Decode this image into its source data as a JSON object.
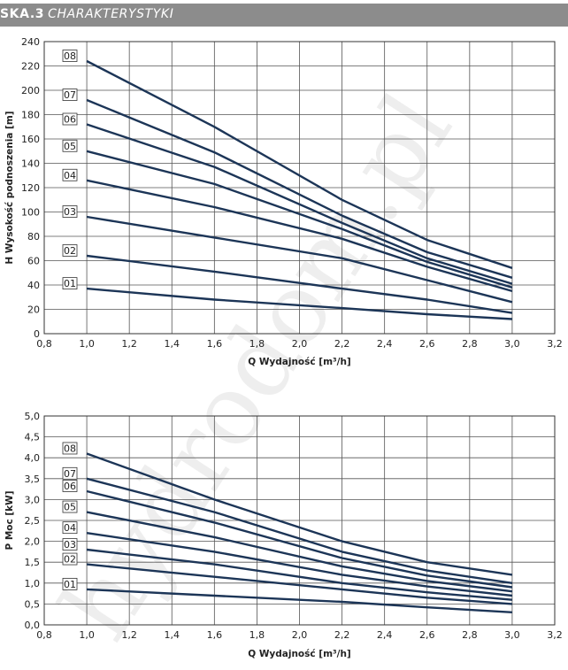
{
  "header": {
    "code": "SKA.3",
    "title": "CHARAKTERYSTYKI"
  },
  "watermark": "hydrodom.pl",
  "colors": {
    "line": "#1c3557",
    "grid": "#555555",
    "header_bg": "#8c8c8c"
  },
  "chart_data": [
    {
      "type": "line",
      "xlabel": "Q Wydajność [m³/h]",
      "ylabel": "H Wysokość podnoszenia [m]",
      "xlim": [
        0.8,
        3.2
      ],
      "ylim": [
        0,
        240
      ],
      "xticks": [
        "0,8",
        "1,0",
        "1,2",
        "1,4",
        "1,6",
        "1,8",
        "2,0",
        "2,2",
        "2,4",
        "2,6",
        "2,8",
        "3,0",
        "3,2"
      ],
      "yticks": [
        "0",
        "20",
        "40",
        "60",
        "80",
        "100",
        "120",
        "140",
        "160",
        "180",
        "200",
        "220",
        "240"
      ],
      "grid": true,
      "x": [
        1.0,
        1.6,
        2.2,
        2.6,
        3.0
      ],
      "series": [
        {
          "name": "08",
          "values": [
            224,
            170,
            110,
            77,
            54
          ]
        },
        {
          "name": "07",
          "values": [
            192,
            149,
            97,
            67,
            46
          ]
        },
        {
          "name": "06",
          "values": [
            172,
            137,
            91,
            62,
            41
          ]
        },
        {
          "name": "05",
          "values": [
            150,
            123,
            86,
            59,
            38
          ]
        },
        {
          "name": "04",
          "values": [
            126,
            104,
            78,
            55,
            35
          ]
        },
        {
          "name": "03",
          "values": [
            96,
            79,
            62,
            44,
            26
          ]
        },
        {
          "name": "02",
          "values": [
            64,
            51,
            37,
            28,
            17
          ]
        },
        {
          "name": "01",
          "values": [
            37,
            28,
            21,
            16,
            12
          ]
        }
      ]
    },
    {
      "type": "line",
      "xlabel": "Q Wydajność [m³/h]",
      "ylabel": "P Moc [kW]",
      "xlim": [
        0.8,
        3.2
      ],
      "ylim": [
        0,
        5
      ],
      "xticks": [
        "0,8",
        "1,0",
        "1,2",
        "1,4",
        "1,6",
        "1,8",
        "2,0",
        "2,2",
        "2,4",
        "2,6",
        "2,8",
        "3,0",
        "3,2"
      ],
      "yticks": [
        "0,0",
        "0,5",
        "1,0",
        "1,5",
        "2,0",
        "2,5",
        "3,0",
        "3,5",
        "4,0",
        "4,5",
        "5,0"
      ],
      "grid": true,
      "x": [
        1.0,
        1.6,
        2.2,
        2.6,
        3.0
      ],
      "series": [
        {
          "name": "08",
          "values": [
            4.1,
            3.0,
            2.0,
            1.5,
            1.2
          ]
        },
        {
          "name": "07",
          "values": [
            3.5,
            2.7,
            1.75,
            1.3,
            1.0
          ]
        },
        {
          "name": "06",
          "values": [
            3.2,
            2.45,
            1.6,
            1.18,
            0.9
          ]
        },
        {
          "name": "05",
          "values": [
            2.7,
            2.1,
            1.4,
            1.05,
            0.8
          ]
        },
        {
          "name": "04",
          "values": [
            2.2,
            1.75,
            1.2,
            0.92,
            0.7
          ]
        },
        {
          "name": "03",
          "values": [
            1.8,
            1.45,
            1.0,
            0.78,
            0.6
          ]
        },
        {
          "name": "02",
          "values": [
            1.45,
            1.15,
            0.85,
            0.65,
            0.5
          ]
        },
        {
          "name": "01",
          "values": [
            0.85,
            0.7,
            0.55,
            0.42,
            0.3
          ]
        }
      ]
    }
  ]
}
